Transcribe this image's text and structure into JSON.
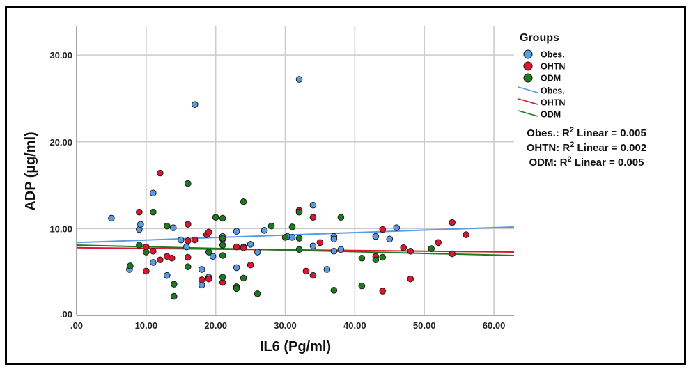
{
  "chart_data": {
    "type": "scatter",
    "title": "",
    "xlabel": "IL6 (Pg/ml)",
    "ylabel": "ADP (µg/ml)",
    "xlim": [
      0,
      62.9
    ],
    "ylim": [
      0,
      33.3
    ],
    "x_ticks": [
      0,
      10,
      20,
      30,
      40,
      50,
      60
    ],
    "x_tick_labels": [
      ".00",
      "10.00",
      "20.00",
      "30.00",
      "40.00",
      "50.00",
      "60.00"
    ],
    "y_ticks": [
      0,
      10,
      20,
      30
    ],
    "y_tick_labels": [
      ".00",
      "10.00",
      "20.00",
      "30.00"
    ],
    "grid": true,
    "legend": {
      "title": "Groups",
      "position": "right",
      "marker_entries": [
        "Obes.",
        "OHTN",
        "ODM"
      ],
      "line_entries": [
        "Obes.",
        "OHTN",
        "ODM"
      ]
    },
    "annotations": [
      {
        "group": "Obes.:",
        "text": "Linear = 0.005"
      },
      {
        "group": "OHTN:",
        "text": "Linear = 0.002"
      },
      {
        "group": "ODM:",
        "text": "Linear = 0.005"
      }
    ],
    "r_symbol": "R",
    "r_sup": "2",
    "series": [
      {
        "name": "Obes.",
        "color": "#5b9be6",
        "fit": {
          "x": [
            0,
            62.9
          ],
          "y": [
            8.4,
            10.2
          ]
        },
        "points": [
          [
            5,
            11.2
          ],
          [
            7.6,
            5.3
          ],
          [
            9,
            9.9
          ],
          [
            9.2,
            10.5
          ],
          [
            11,
            14.1
          ],
          [
            11,
            6.1
          ],
          [
            13,
            4.6
          ],
          [
            13.9,
            10.1
          ],
          [
            15,
            8.7
          ],
          [
            15.8,
            7.9
          ],
          [
            17,
            24.3
          ],
          [
            18,
            5.3
          ],
          [
            18,
            3.5
          ],
          [
            19,
            4.4
          ],
          [
            19.6,
            6.8
          ],
          [
            21,
            9.1
          ],
          [
            21,
            8.8
          ],
          [
            23,
            9.7
          ],
          [
            23,
            5.5
          ],
          [
            24,
            7.9
          ],
          [
            25,
            8.2
          ],
          [
            26,
            7.3
          ],
          [
            27,
            9.8
          ],
          [
            30.3,
            9.1
          ],
          [
            31,
            9.0
          ],
          [
            32,
            27.2
          ],
          [
            34,
            12.7
          ],
          [
            34,
            8.0
          ],
          [
            36,
            5.3
          ],
          [
            37,
            9.1
          ],
          [
            37,
            8.8
          ],
          [
            37,
            7.4
          ],
          [
            38,
            7.6
          ],
          [
            43,
            9.1
          ],
          [
            45,
            8.8
          ],
          [
            46,
            10.1
          ]
        ]
      },
      {
        "name": "OHTN",
        "color": "#e0142e",
        "fit": {
          "x": [
            0,
            62.9
          ],
          "y": [
            7.8,
            7.3
          ]
        },
        "points": [
          [
            9,
            11.9
          ],
          [
            10,
            7.9
          ],
          [
            10,
            5.1
          ],
          [
            11,
            7.4
          ],
          [
            12,
            16.4
          ],
          [
            12,
            6.4
          ],
          [
            13,
            6.8
          ],
          [
            13.7,
            6.6
          ],
          [
            16,
            10.5
          ],
          [
            16,
            8.6
          ],
          [
            16,
            6.7
          ],
          [
            17,
            8.7
          ],
          [
            18,
            4.1
          ],
          [
            18.7,
            9.3
          ],
          [
            19,
            9.6
          ],
          [
            19,
            4.2
          ],
          [
            21,
            3.8
          ],
          [
            23,
            7.9
          ],
          [
            24,
            7.8
          ],
          [
            25,
            5.8
          ],
          [
            32,
            12.1
          ],
          [
            33,
            5.1
          ],
          [
            34,
            11.3
          ],
          [
            34,
            4.6
          ],
          [
            35,
            8.4
          ],
          [
            43,
            6.8
          ],
          [
            44,
            9.9
          ],
          [
            44,
            2.8
          ],
          [
            47,
            7.8
          ],
          [
            48,
            7.4
          ],
          [
            48,
            4.2
          ],
          [
            52,
            8.4
          ],
          [
            54,
            10.7
          ],
          [
            54,
            7.1
          ],
          [
            56,
            9.3
          ]
        ]
      },
      {
        "name": "ODM",
        "color": "#1e7a1e",
        "fit": {
          "x": [
            0,
            62.9
          ],
          "y": [
            8.1,
            6.9
          ]
        },
        "points": [
          [
            7.7,
            5.7
          ],
          [
            9,
            8.1
          ],
          [
            10,
            7.3
          ],
          [
            11,
            11.9
          ],
          [
            13,
            10.3
          ],
          [
            14,
            3.6
          ],
          [
            14,
            2.2
          ],
          [
            16,
            15.2
          ],
          [
            16,
            5.6
          ],
          [
            19,
            7.3
          ],
          [
            20,
            11.3
          ],
          [
            21,
            11.2
          ],
          [
            21,
            8.9
          ],
          [
            21,
            8.1
          ],
          [
            21,
            6.9
          ],
          [
            21,
            4.4
          ],
          [
            23,
            3.3
          ],
          [
            23,
            3.1
          ],
          [
            24,
            13.1
          ],
          [
            24,
            4.3
          ],
          [
            26,
            2.5
          ],
          [
            28,
            10.3
          ],
          [
            30,
            9.0
          ],
          [
            31,
            10.2
          ],
          [
            32,
            11.9
          ],
          [
            32,
            7.6
          ],
          [
            32,
            8.9
          ],
          [
            37,
            2.9
          ],
          [
            38,
            11.3
          ],
          [
            41,
            6.6
          ],
          [
            41,
            3.4
          ],
          [
            43,
            6.4
          ],
          [
            44,
            6.7
          ],
          [
            51,
            7.7
          ]
        ]
      }
    ]
  }
}
